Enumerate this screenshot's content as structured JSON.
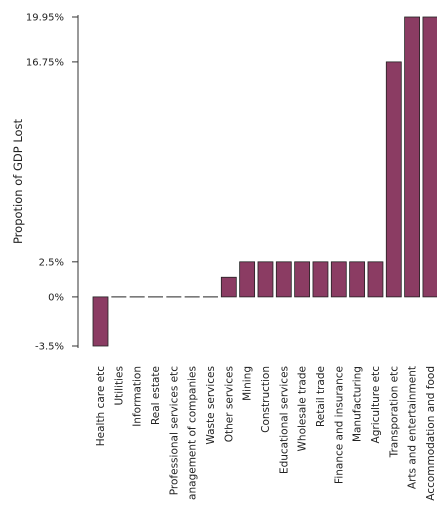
{
  "chart_data": {
    "type": "bar",
    "title": "",
    "xlabel": "",
    "ylabel": "Propotion of GDP Lost",
    "ylim": [
      -3.5,
      19.95
    ],
    "yticks": [
      -3.5,
      0,
      2.5,
      16.75,
      19.95
    ],
    "ytick_labels": [
      "-3.5%",
      "0%",
      "2.5%",
      "16.75%",
      "19.95%"
    ],
    "grid": false,
    "bar_color": "#8b3c63",
    "categories": [
      "Health care etc",
      "Utilities",
      "Information",
      "Real estate",
      "Professional services etc",
      "anagement of companies",
      "Waste services",
      "Other services",
      "Mining",
      "Construction",
      "Educational services",
      "Wholesale trade",
      "Retail trade",
      "Finance and insurance",
      "Manufacturing",
      "Agriculture etc",
      "Transporation etc",
      "Arts and entertainment",
      "Accommodation and food"
    ],
    "values": [
      -3.5,
      0,
      0,
      0,
      0,
      0,
      0,
      1.4,
      2.5,
      2.5,
      2.5,
      2.5,
      2.5,
      2.5,
      2.5,
      2.5,
      16.75,
      19.95,
      19.95
    ]
  }
}
